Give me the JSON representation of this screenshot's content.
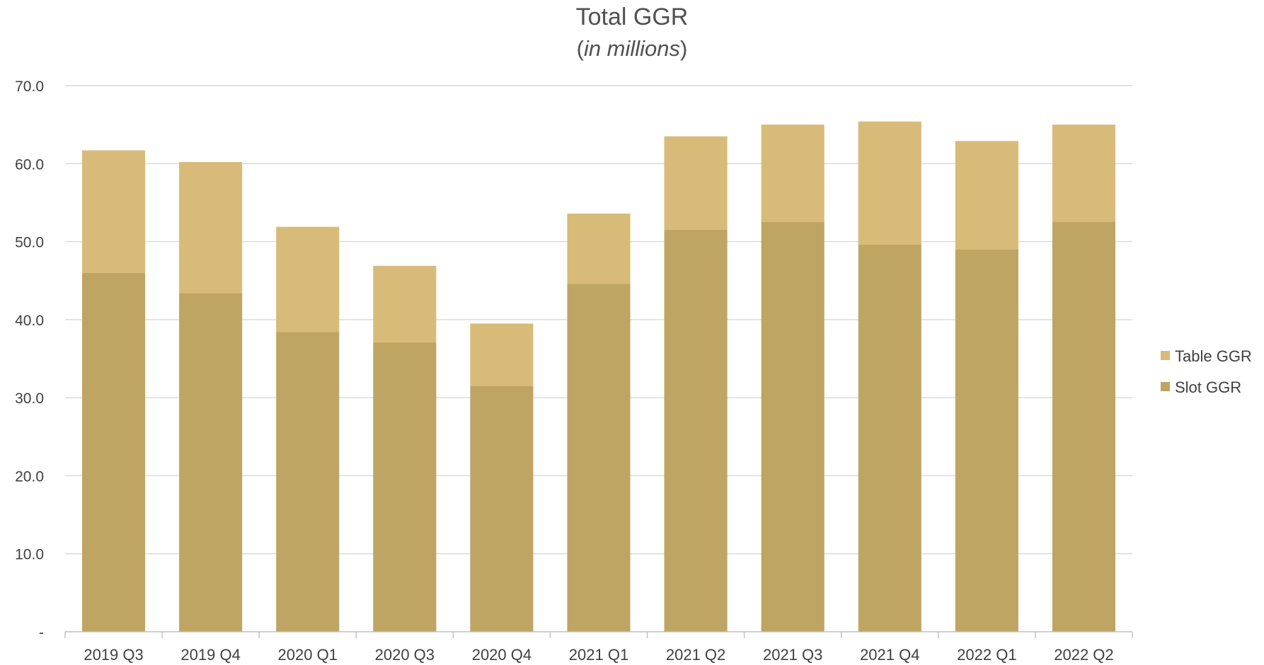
{
  "chart_data": {
    "type": "bar",
    "stacked": true,
    "title": "Total GGR",
    "subtitle_prefix": "(",
    "subtitle_italic": "in millions",
    "subtitle_suffix": ")",
    "xlabel": "",
    "ylabel": "",
    "ylim": [
      0,
      70
    ],
    "y_ticks": [
      "-",
      "10.0",
      "20.0",
      "30.0",
      "40.0",
      "50.0",
      "60.0",
      "70.0"
    ],
    "y_tick_values": [
      0,
      10,
      20,
      30,
      40,
      50,
      60,
      70
    ],
    "grid": true,
    "legend_position": "right",
    "categories": [
      "2019 Q3",
      "2019 Q4",
      "2020 Q1",
      "2020 Q3",
      "2020 Q4",
      "2021 Q1",
      "2021 Q2",
      "2021 Q3",
      "2021 Q4",
      "2022 Q1",
      "2022 Q2"
    ],
    "series": [
      {
        "name": "Slot GGR",
        "color": "#bfa563",
        "values": [
          46.0,
          43.4,
          38.4,
          37.1,
          31.5,
          44.6,
          51.5,
          52.5,
          49.6,
          49.0,
          52.5
        ]
      },
      {
        "name": "Table GGR",
        "color": "#d8bb78",
        "values": [
          15.7,
          16.8,
          13.5,
          9.8,
          8.0,
          9.0,
          12.0,
          12.5,
          15.8,
          13.9,
          12.5
        ]
      }
    ],
    "legend_order": [
      "Table GGR",
      "Slot GGR"
    ]
  }
}
